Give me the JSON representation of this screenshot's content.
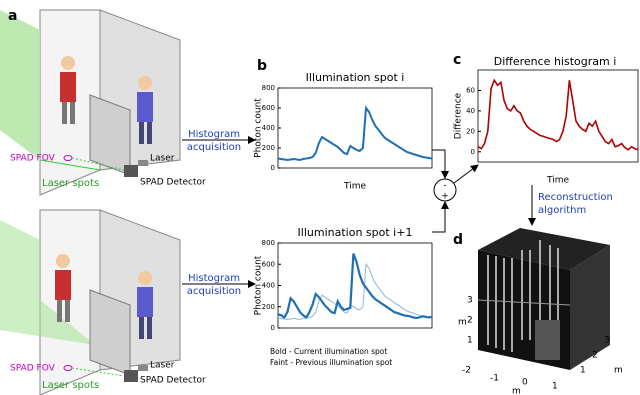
{
  "panels": [
    "a",
    "b",
    "c",
    "d"
  ],
  "acquisition_label": [
    "Histogram",
    "acquisition"
  ],
  "reconstruction_label": [
    "Reconstruction",
    "algorithm"
  ],
  "operator": {
    "minus": "-",
    "plus": "+"
  },
  "scene": {
    "fov": "SPAD FOV",
    "spots": "Laser spots",
    "laser": "Laser",
    "detector": "SPAD Detector"
  },
  "panel_d": {
    "unit": "m",
    "z_ticks": [
      "3",
      "2",
      "1"
    ],
    "x_ticks": [
      "-2",
      "-1",
      "0",
      "1"
    ],
    "y_ticks": [
      "3",
      "2",
      "1"
    ]
  },
  "chart_data": [
    {
      "type": "line",
      "title": "Illumination spot i",
      "xlabel": "Time",
      "ylabel": "Photon count",
      "ylim": [
        0,
        800
      ],
      "yticks": [
        0,
        200,
        400,
        600,
        800
      ],
      "series": [
        {
          "color": "#1f6fb4",
          "values": [
            95,
            90,
            85,
            80,
            85,
            90,
            85,
            80,
            90,
            95,
            100,
            110,
            150,
            250,
            310,
            290,
            270,
            250,
            230,
            210,
            180,
            150,
            140,
            220,
            200,
            180,
            170,
            200,
            600,
            560,
            480,
            420,
            380,
            340,
            300,
            280,
            260,
            240,
            220,
            200,
            180,
            160,
            150,
            140,
            130,
            120,
            110,
            105,
            100,
            95
          ]
        }
      ]
    },
    {
      "type": "line",
      "title": "Illumination spot i+1",
      "ylabel": "Photon count",
      "ylim": [
        0,
        800
      ],
      "yticks": [
        0,
        200,
        400,
        600,
        800
      ],
      "series": [
        {
          "name": "Faint - Previous illumination spot",
          "color": "#8fb5d8",
          "values": [
            95,
            90,
            85,
            80,
            85,
            90,
            85,
            80,
            90,
            95,
            100,
            110,
            150,
            250,
            310,
            290,
            270,
            250,
            230,
            210,
            180,
            150,
            140,
            220,
            200,
            180,
            170,
            200,
            600,
            560,
            480,
            420,
            380,
            340,
            300,
            280,
            260,
            240,
            220,
            200,
            180,
            160,
            150,
            140,
            130,
            120,
            110,
            105,
            100,
            95
          ]
        },
        {
          "name": "Bold - Current illumination spot",
          "color": "#1f6fb4",
          "values": [
            130,
            120,
            100,
            150,
            280,
            250,
            200,
            150,
            120,
            100,
            150,
            220,
            320,
            290,
            250,
            210,
            180,
            150,
            140,
            250,
            200,
            170,
            180,
            190,
            700,
            620,
            500,
            420,
            380,
            340,
            300,
            270,
            250,
            230,
            210,
            190,
            170,
            150,
            140,
            130,
            120,
            115,
            110,
            100,
            95,
            100,
            110,
            105,
            100,
            105
          ]
        }
      ]
    },
    {
      "type": "line",
      "title": "Difference histogram i",
      "xlabel": "Time",
      "ylabel": "Difference",
      "ylim": [
        -10,
        80
      ],
      "yticks": [
        0,
        20,
        40,
        60
      ],
      "series": [
        {
          "color": "#b00000",
          "values": [
            5,
            3,
            8,
            20,
            62,
            70,
            65,
            68,
            50,
            42,
            40,
            45,
            40,
            38,
            30,
            25,
            22,
            20,
            18,
            16,
            15,
            14,
            13,
            12,
            10,
            12,
            20,
            35,
            70,
            50,
            30,
            25,
            22,
            20,
            28,
            25,
            30,
            20,
            15,
            10,
            8,
            12,
            5,
            6,
            8,
            4,
            2,
            5,
            3,
            2
          ]
        }
      ]
    }
  ]
}
